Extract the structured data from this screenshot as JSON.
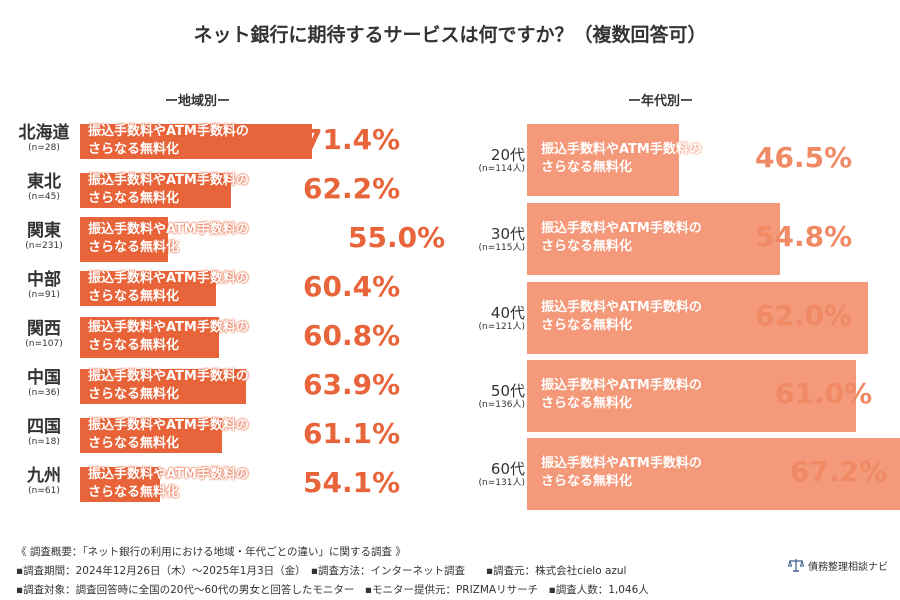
{
  "title": "ネット銀行に期待するサービスは何ですか？（複数回答可）",
  "chart_data": [
    {
      "type": "bar",
      "section_label": "ー地域別ー",
      "series_label": "振込手数料やATM手数料のさらなる無料化",
      "bar_text_line1": "振込手数料やATM手数料の",
      "bar_text_line2": "さらなる無料化",
      "categories": [
        "北海道",
        "東北",
        "関東",
        "中部",
        "関西",
        "中国",
        "四国",
        "九州"
      ],
      "sample_sizes": [
        "(n=28)",
        "(n=45)",
        "(n=231)",
        "(n=91)",
        "(n=107)",
        "(n=36)",
        "(n=18)",
        "(n=61)"
      ],
      "values": [
        71.4,
        62.2,
        55.0,
        60.4,
        60.8,
        63.9,
        61.1,
        54.1
      ],
      "value_labels": [
        "71.4%",
        "62.2%",
        "55.0%",
        "60.4%",
        "60.8%",
        "63.9%",
        "61.1%",
        "54.1%"
      ],
      "highlight_category": "関東"
    },
    {
      "type": "bar",
      "section_label": "ー年代別ー",
      "series_label": "振込手数料やATM手数料のさらなる無料化",
      "bar_text_line1": "振込手数料やATM手数料の",
      "bar_text_line2": "さらなる無料化",
      "categories": [
        "20代",
        "30代",
        "40代",
        "50代",
        "60代"
      ],
      "sample_sizes": [
        "(n=114人)",
        "(n=115人)",
        "(n=121人)",
        "(n=136人)",
        "(n=131人)"
      ],
      "values": [
        46.5,
        54.8,
        62.0,
        61.0,
        67.2
      ],
      "value_labels": [
        "46.5%",
        "54.8%",
        "62.0%",
        "61.0%",
        "67.2%"
      ]
    }
  ],
  "colors": {
    "region_bar": "#e8643a",
    "age_bar": "#f4997a",
    "region_pct": "#e8643a",
    "age_pct": "#f08a65"
  },
  "footer": {
    "line1": "《 調査概要：「ネット銀行の利用における地域・年代ごとの違い」に関する調査 》",
    "line2": "▪調査期間：2024年12月26日（木）～2025年1月3日（金）　▪調査方法：インターネット調査　　▪調査元：株式会社cielo azul",
    "line3": "▪調査対象：調査回答時に全国の20代～60代の男女と回答したモニター　▪モニター提供元：PRIZMAリサーチ　▪調査人数：1,046人"
  },
  "logo": {
    "text": "債務整理相談ナビ",
    "icon": "scales-of-justice-icon"
  }
}
